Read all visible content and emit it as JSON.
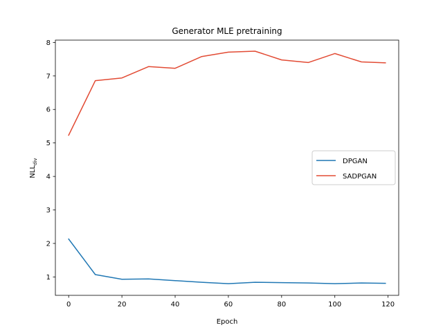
{
  "chart_data": {
    "type": "line",
    "title": "Generator MLE pretraining",
    "xlabel": "Epoch",
    "ylabel": {
      "main": "NLL",
      "sub": "div"
    },
    "x": [
      0,
      10,
      20,
      30,
      40,
      50,
      60,
      70,
      80,
      90,
      100,
      110,
      119
    ],
    "xlim": [
      -5,
      124
    ],
    "ylim": [
      0.45,
      8.07
    ],
    "xticks": [
      0,
      20,
      40,
      60,
      80,
      100,
      120
    ],
    "yticks": [
      1,
      2,
      3,
      4,
      5,
      6,
      7,
      8
    ],
    "grid": false,
    "legend_position": "center right",
    "series": [
      {
        "name": "DPGAN",
        "color": "#1f77b4",
        "values": [
          2.13,
          1.07,
          0.93,
          0.94,
          0.89,
          0.84,
          0.8,
          0.84,
          0.83,
          0.82,
          0.8,
          0.82,
          0.81
        ]
      },
      {
        "name": "SADPGAN",
        "color": "#e24a33",
        "values": [
          5.23,
          6.86,
          6.94,
          7.28,
          7.23,
          7.58,
          7.71,
          7.74,
          7.48,
          7.4,
          7.67,
          7.42,
          7.39
        ]
      }
    ]
  }
}
